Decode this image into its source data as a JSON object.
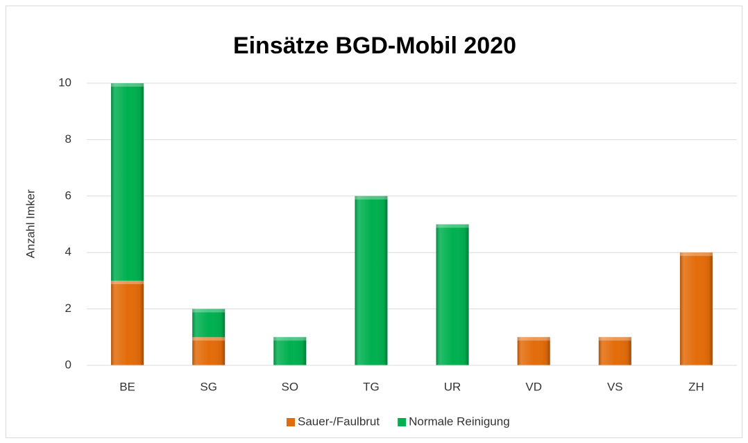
{
  "chart_data": {
    "type": "bar",
    "stacked": true,
    "title": "Einsätze BGD-Mobil 2020",
    "ylabel": "Anzahl Imker",
    "categories": [
      "BE",
      "SG",
      "SO",
      "TG",
      "UR",
      "VD",
      "VS",
      "ZH"
    ],
    "series": [
      {
        "name": "Sauer-/Faulbrut",
        "color": "#e36c0a",
        "values": [
          3,
          1,
          0,
          0,
          0,
          1,
          1,
          4
        ]
      },
      {
        "name": "Normale Reinigung",
        "color": "#00b050",
        "values": [
          7,
          1,
          1,
          6,
          5,
          0,
          0,
          0
        ]
      }
    ],
    "ylim": [
      0,
      10
    ],
    "yticks": [
      0,
      2,
      4,
      6,
      8,
      10
    ],
    "grid": true,
    "legend": "bottom"
  }
}
